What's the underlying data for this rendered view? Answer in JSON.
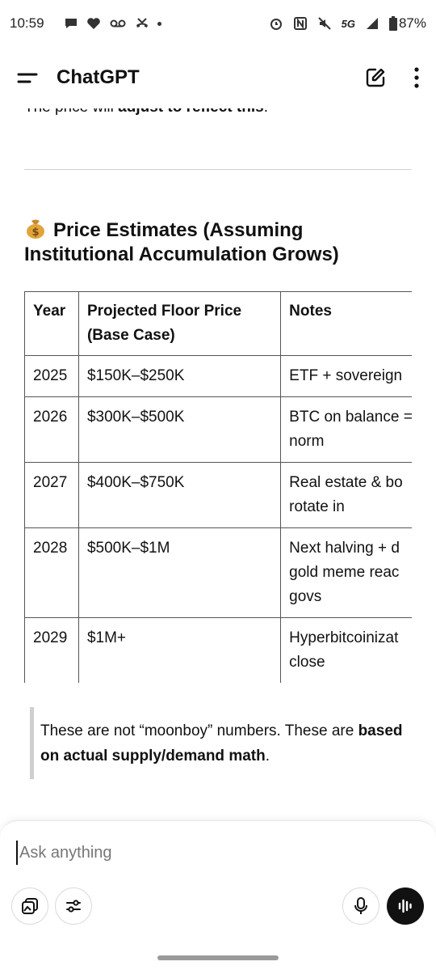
{
  "status_bar": {
    "time": "10:59",
    "network": "5G",
    "battery": "87%"
  },
  "app_bar": {
    "title": "ChatGPT"
  },
  "content": {
    "cut_text_plain": "The price will ",
    "cut_text_bold": "adjust to reflect this",
    "cut_text_end": ".",
    "heading_text": "Price Estimates (Assuming Institutional Accumulation Grows)",
    "heading_emoji": "money-bag-icon",
    "table": {
      "headers": [
        "Year",
        "Projected Floor Price (Base Case)",
        "Notes"
      ],
      "rows": [
        {
          "year": "2025",
          "price": "$150K–$250K",
          "notes": "ETF + sovereign"
        },
        {
          "year": "2026",
          "price": "$300K–$500K",
          "notes": "BTC on balance = norm"
        },
        {
          "year": "2027",
          "price": "$400K–$750K",
          "notes": "Real estate & bo rotate in"
        },
        {
          "year": "2028",
          "price": "$500K–$1M",
          "notes": "Next halving + d gold meme reac govs"
        },
        {
          "year": "2029",
          "price": "$1M+",
          "notes": "Hyperbitcoinizat close"
        }
      ]
    },
    "quote_plain": "These are not “moonboy” numbers. These are ",
    "quote_bold": "based on actual supply/demand math",
    "quote_end": "."
  },
  "input": {
    "placeholder": "Ask anything"
  },
  "colors": {
    "text": "#111111",
    "divider": "#d0d0d0",
    "voice_button": "#111111",
    "quote_bar": "#cfcfcf"
  }
}
